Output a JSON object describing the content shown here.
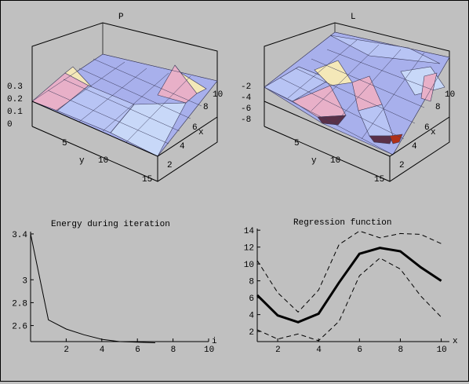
{
  "colors": {
    "background": "#c0c0c0",
    "surface_blue": "#a8b0ec",
    "surface_pink": "#e8b0c8",
    "surface_yellow": "#f4e8b8",
    "surface_dark": "#5a3048",
    "line": "#000000"
  },
  "chart_data": [
    {
      "type": "surface3d",
      "title": "P",
      "xlabel": "x",
      "ylabel": "y",
      "x_ticks": [
        "2",
        "4",
        "6",
        "8",
        "10"
      ],
      "y_ticks": [
        "5",
        "10",
        "15"
      ],
      "z_ticks": [
        "0.3",
        "0.2",
        "0.1",
        "0"
      ],
      "xlim": [
        1,
        10
      ],
      "ylim": [
        1,
        15
      ],
      "zlim": [
        0,
        0.3
      ]
    },
    {
      "type": "surface3d",
      "title": "L",
      "xlabel": "x",
      "ylabel": "y",
      "x_ticks": [
        "2",
        "4",
        "6",
        "8",
        "10"
      ],
      "y_ticks": [
        "5",
        "10",
        "15"
      ],
      "z_ticks": [
        "-2",
        "-4",
        "-6",
        "-8"
      ],
      "xlim": [
        1,
        10
      ],
      "ylim": [
        1,
        15
      ],
      "zlim": [
        -9,
        -1
      ]
    },
    {
      "type": "line",
      "title": "Energy during iteration",
      "xlabel": "i",
      "ylabel": "",
      "x_ticks": [
        "2",
        "4",
        "6",
        "8",
        "10"
      ],
      "y_ticks": [
        "3.4",
        "3",
        "2.8",
        "2.6"
      ],
      "xlim": [
        0,
        10
      ],
      "ylim": [
        2.46,
        3.42
      ],
      "series": [
        {
          "x": [
            0,
            1,
            2,
            3,
            4,
            5,
            6,
            7
          ],
          "y": [
            3.4,
            2.65,
            2.57,
            2.52,
            2.48,
            2.46,
            2.455,
            2.45
          ]
        }
      ]
    },
    {
      "type": "line",
      "title": "Regression function",
      "xlabel": "x",
      "ylabel": "",
      "x_ticks": [
        "2",
        "4",
        "6",
        "8",
        "10"
      ],
      "y_ticks": [
        "14",
        "12",
        "10",
        "8",
        "6",
        "4",
        "2"
      ],
      "xlim": [
        1,
        10.4
      ],
      "ylim": [
        0.8,
        14.2
      ],
      "series": [
        {
          "style": "solid-thick",
          "x": [
            1,
            2,
            3,
            4,
            5,
            6,
            7,
            8,
            9,
            10
          ],
          "y": [
            6.3,
            3.9,
            3.1,
            4.1,
            7.8,
            11.2,
            11.9,
            11.5,
            9.6,
            8.0
          ]
        },
        {
          "style": "dashed",
          "x": [
            1,
            2,
            3,
            4,
            5,
            6,
            7,
            8,
            9,
            10
          ],
          "y": [
            10.4,
            6.6,
            4.3,
            6.9,
            12.3,
            13.9,
            13.1,
            13.6,
            13.5,
            12.4
          ]
        },
        {
          "style": "dashed",
          "x": [
            1,
            2,
            3,
            4,
            5,
            6,
            7,
            8,
            9,
            10
          ],
          "y": [
            2.2,
            1.1,
            1.7,
            0.9,
            3.2,
            8.6,
            10.7,
            9.4,
            6.2,
            3.7
          ]
        }
      ]
    }
  ]
}
